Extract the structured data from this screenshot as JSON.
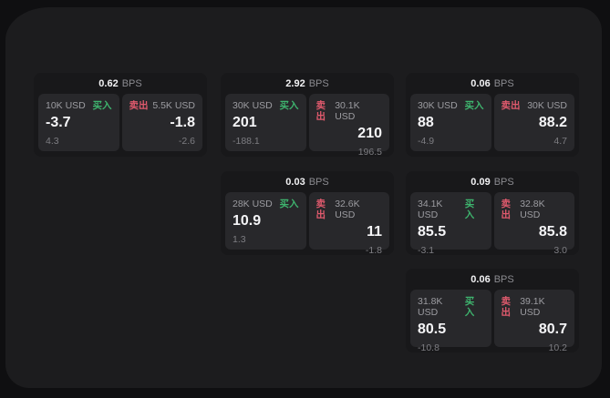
{
  "labels": {
    "bps": "BPS",
    "buy": "买入",
    "sell": "卖出"
  },
  "colors": {
    "buy_green": "#3eb46e",
    "sell_red": "#e05a6d",
    "surface": "#1c1c1e",
    "card": "#18181a",
    "panel": "#28282b",
    "backdrop": "#0f0f11"
  },
  "cards": [
    {
      "bps": "0.62",
      "row": 1,
      "col": 1,
      "buy": {
        "amount": "10K USD",
        "value": "-3.7",
        "delta": "4.3"
      },
      "sell": {
        "amount": "5.5K USD",
        "value": "-1.8",
        "delta": "-2.6"
      }
    },
    {
      "bps": "2.92",
      "row": 1,
      "col": 2,
      "buy": {
        "amount": "30K USD",
        "value": "201",
        "delta": "-188.1"
      },
      "sell": {
        "amount": "30.1K USD",
        "value": "210",
        "delta": "196.5"
      }
    },
    {
      "bps": "0.06",
      "row": 1,
      "col": 3,
      "buy": {
        "amount": "30K USD",
        "value": "88",
        "delta": "-4.9"
      },
      "sell": {
        "amount": "30K USD",
        "value": "88.2",
        "delta": "4.7"
      }
    },
    {
      "bps": "0.03",
      "row": 2,
      "col": 2,
      "buy": {
        "amount": "28K USD",
        "value": "10.9",
        "delta": "1.3"
      },
      "sell": {
        "amount": "32.6K USD",
        "value": "11",
        "delta": "-1.8"
      }
    },
    {
      "bps": "0.09",
      "row": 2,
      "col": 3,
      "buy": {
        "amount": "34.1K USD",
        "value": "85.5",
        "delta": "-3.1"
      },
      "sell": {
        "amount": "32.8K USD",
        "value": "85.8",
        "delta": "3.0"
      }
    },
    {
      "bps": "0.06",
      "row": 3,
      "col": 3,
      "buy": {
        "amount": "31.8K USD",
        "value": "80.5",
        "delta": "-10.8"
      },
      "sell": {
        "amount": "39.1K USD",
        "value": "80.7",
        "delta": "10.2"
      }
    }
  ]
}
